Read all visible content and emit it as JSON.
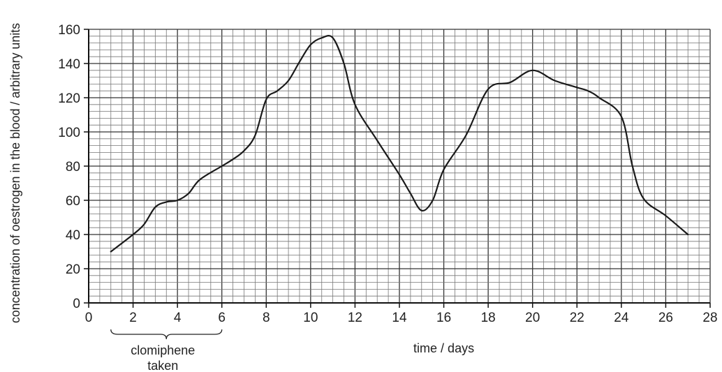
{
  "chart_data": {
    "type": "line",
    "title": "",
    "xlabel": "time / days",
    "ylabel": "concentration of oestrogen in the blood / arbitrary units",
    "xlim": [
      0,
      28
    ],
    "ylim": [
      0,
      160
    ],
    "x_ticks": [
      "0",
      "2",
      "4",
      "6",
      "8",
      "10",
      "12",
      "14",
      "16",
      "18",
      "20",
      "22",
      "24",
      "26",
      "28"
    ],
    "y_ticks": [
      "0",
      "20",
      "40",
      "60",
      "80",
      "100",
      "120",
      "140",
      "160"
    ],
    "grid": true,
    "series": [
      {
        "x": [
          1,
          2,
          2.5,
          3,
          3.5,
          4,
          4.5,
          5,
          6,
          6.5,
          7,
          7.5,
          8,
          8.5,
          9,
          9.5,
          10,
          10.5,
          11,
          11.5,
          12,
          13,
          14,
          14.5,
          15,
          15.5,
          16,
          17,
          18,
          19,
          20,
          21,
          22,
          22.5,
          23,
          24,
          24.5,
          25,
          26,
          27
        ],
        "y": [
          30,
          40,
          46,
          56,
          59,
          60,
          64,
          72,
          80,
          84,
          89,
          98,
          119,
          124,
          130,
          141,
          151,
          155,
          155,
          140,
          116,
          95,
          75,
          64,
          54,
          60,
          78,
          98,
          125,
          129,
          136,
          130,
          126,
          124,
          120,
          109,
          80,
          61,
          51,
          40
        ]
      }
    ],
    "annotations": [
      {
        "type": "brace",
        "x_start": 1,
        "x_end": 6,
        "lines": [
          "clomiphene",
          "taken"
        ]
      }
    ]
  }
}
